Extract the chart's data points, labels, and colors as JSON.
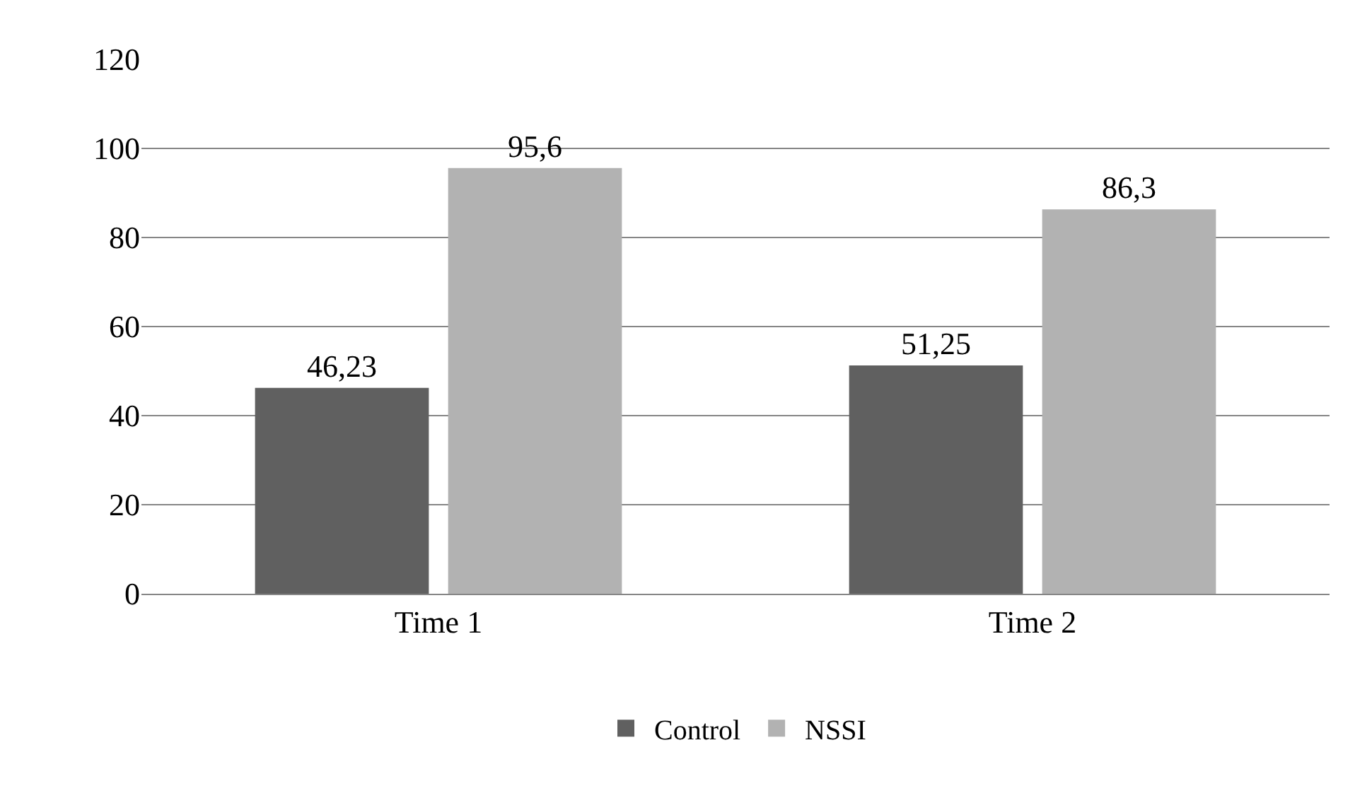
{
  "chart_data": {
    "type": "bar",
    "categories": [
      "Time 1",
      "Time 2"
    ],
    "series": [
      {
        "name": "Control",
        "color": "#606060",
        "values": [
          46.23,
          51.25
        ],
        "value_labels": [
          "46,23",
          "51,25"
        ]
      },
      {
        "name": "NSSI",
        "color": "#b2b2b2",
        "values": [
          95.6,
          86.3
        ],
        "value_labels": [
          "95,6",
          "86,3"
        ]
      }
    ],
    "ylim": [
      0,
      120
    ],
    "yticks": [
      0,
      20,
      40,
      60,
      80,
      100,
      120
    ],
    "grid": "y",
    "legend": "bottom"
  }
}
